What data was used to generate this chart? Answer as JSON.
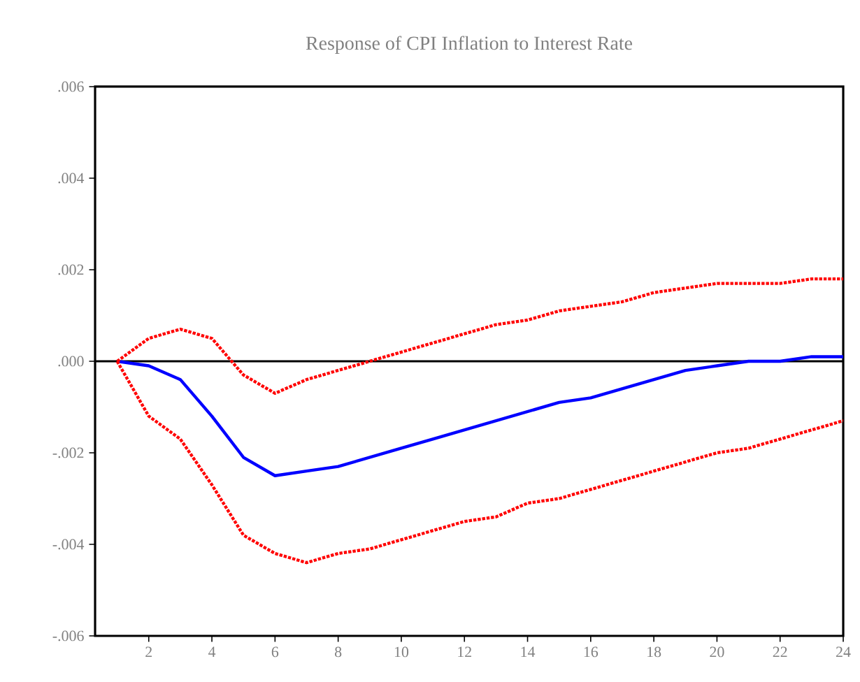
{
  "chart_data": {
    "type": "line",
    "title": "Response of CPI Inflation to Interest Rate",
    "x": [
      1,
      2,
      3,
      4,
      5,
      6,
      7,
      8,
      9,
      10,
      11,
      12,
      13,
      14,
      15,
      16,
      17,
      18,
      19,
      20,
      21,
      22,
      23,
      24
    ],
    "series": [
      {
        "color": "#0000ff",
        "line_style": "solid",
        "values": [
          0,
          -0.0001,
          -0.0004,
          -0.0012,
          -0.0021,
          -0.0025,
          -0.0024,
          -0.0023,
          -0.0021,
          -0.0019,
          -0.0017,
          -0.0015,
          -0.0013,
          -0.0011,
          -0.0009,
          -0.0008,
          -0.0006,
          -0.0004,
          -0.0002,
          -0.0001,
          0,
          0,
          0.0001,
          0.0001
        ]
      },
      {
        "color": "#ff0000",
        "line_style": "dotted",
        "values": [
          0,
          0.0005,
          0.0007,
          0.0005,
          -0.0003,
          -0.0007,
          -0.0004,
          -0.0002,
          0,
          0.0002,
          0.0004,
          0.0006,
          0.0008,
          0.0009,
          0.0011,
          0.0012,
          0.0013,
          0.0015,
          0.0016,
          0.0017,
          0.0017,
          0.0017,
          0.0018,
          0.0018
        ]
      },
      {
        "color": "#ff0000",
        "line_style": "dotted",
        "values": [
          0,
          -0.0012,
          -0.0017,
          -0.0027,
          -0.0038,
          -0.0042,
          -0.0044,
          -0.0042,
          -0.0041,
          -0.0039,
          -0.0037,
          -0.0035,
          -0.0034,
          -0.0031,
          -0.003,
          -0.0028,
          -0.0026,
          -0.0024,
          -0.0022,
          -0.002,
          -0.0019,
          -0.0017,
          -0.0015,
          -0.0013
        ]
      }
    ],
    "xlim": [
      0.3,
      24
    ],
    "ylim": [
      -0.006,
      0.006
    ],
    "xticks": [
      2,
      4,
      6,
      8,
      10,
      12,
      14,
      16,
      18,
      20,
      22,
      24
    ],
    "yticks": [
      {
        "value": -0.006,
        "label": "-.006"
      },
      {
        "value": -0.004,
        "label": "-.004"
      },
      {
        "value": -0.002,
        "label": "-.002"
      },
      {
        "value": 0,
        "label": ".000"
      },
      {
        "value": 0.002,
        "label": ".002"
      },
      {
        "value": 0.004,
        "label": ".004"
      },
      {
        "value": 0.006,
        "label": ".006"
      }
    ],
    "ref_lines": [
      {
        "axis": "y",
        "value": 0,
        "color": "#000000"
      }
    ],
    "grid": false,
    "marker": "none"
  }
}
